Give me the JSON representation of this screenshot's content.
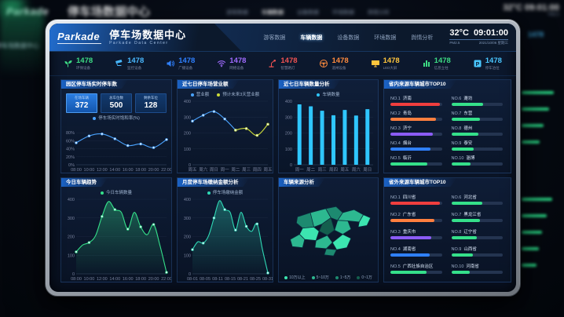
{
  "header": {
    "logo": "Parkade",
    "title": "停车场数据中心",
    "subtitle": "Parkade Data Center",
    "nav": [
      {
        "label": "游客数据",
        "active": false
      },
      {
        "label": "车辆数据",
        "active": true
      },
      {
        "label": "设备数据",
        "active": false
      },
      {
        "label": "环境数据",
        "active": false
      },
      {
        "label": "舆情分析",
        "active": false
      }
    ],
    "weather": {
      "temp": "32°C",
      "time": "09:01:00",
      "pm": "PM2.5",
      "date": "2021/10/06 星期三"
    }
  },
  "stats": [
    {
      "icon": "seedling-icon",
      "value": "1478",
      "label": "环保设备",
      "color": "#3ddc84"
    },
    {
      "icon": "cctv-icon",
      "value": "1478",
      "label": "监控设备",
      "color": "#49b8ff"
    },
    {
      "icon": "speaker-icon",
      "value": "1478",
      "label": "广播设备",
      "color": "#2f80ff"
    },
    {
      "icon": "wifi-icon",
      "value": "1478",
      "label": "网络设备",
      "color": "#a06bff"
    },
    {
      "icon": "lamp-icon",
      "value": "1478",
      "label": "智慧路灯",
      "color": "#f05252"
    },
    {
      "icon": "steering-icon",
      "value": "1478",
      "label": "道闸设备",
      "color": "#ff8a3d"
    },
    {
      "icon": "screen-icon",
      "value": "1478",
      "label": "LED大屏",
      "color": "#ffc53d"
    },
    {
      "icon": "pillar-icon",
      "value": "1478",
      "label": "信息立柱",
      "color": "#3ddc84"
    },
    {
      "icon": "parking-icon",
      "value": "1478",
      "label": "停车泊位",
      "color": "#49c6ff"
    }
  ],
  "panels": {
    "p1": {
      "title": "园区停车场实时停车数"
    },
    "p2": {
      "title": "近七日停车场营业额"
    },
    "p3": {
      "title": "近七日车辆数量分析"
    },
    "p4": {
      "title": "省内来源车辆城市TOP10"
    },
    "p5": {
      "title": "今日车辆趋势"
    },
    "p6": {
      "title": "月度停车场缴纳金额分析"
    },
    "p7": {
      "title": "车辆来源分析"
    },
    "p8": {
      "title": "省外来源车辆城市TOP10"
    }
  },
  "overview": {
    "boxes": [
      {
        "label": "在场车辆",
        "value": "372",
        "active": true
      },
      {
        "label": "总车位数",
        "value": "500",
        "active": false
      },
      {
        "label": "剩余车位",
        "value": "128",
        "active": false
      }
    ]
  },
  "chart_data": [
    {
      "id": "realtime-saturation",
      "type": "line",
      "title": "园区停车场实时停车数",
      "x": [
        "08:00",
        "10:00",
        "12:00",
        "14:00",
        "16:00",
        "18:00",
        "20:00",
        "22:00"
      ],
      "ylim": [
        0,
        100
      ],
      "yticks": [
        0,
        20,
        40,
        60,
        80
      ],
      "ysuffix": "%",
      "series": [
        {
          "name": "停车场实时饱和率(%)",
          "color": "#4aa3ff",
          "values": [
            55,
            72,
            77,
            65,
            48,
            52,
            43,
            63
          ]
        }
      ]
    },
    {
      "id": "weekly-revenue",
      "type": "line",
      "title": "近七日停车场营业额",
      "x": [
        "周五",
        "周六",
        "周日",
        "周一",
        "周二",
        "周三",
        "周四",
        "周五"
      ],
      "ylim": [
        0,
        400
      ],
      "yticks": [
        0,
        100,
        200,
        300,
        400
      ],
      "series": [
        {
          "name": "营业额",
          "color": "#4aa3ff",
          "values": [
            275,
            312,
            335,
            288,
            218,
            null,
            null,
            null
          ]
        },
        {
          "name": "预计未来3天营业额",
          "color": "#cddc39",
          "values": [
            null,
            null,
            null,
            null,
            218,
            228,
            185,
            255
          ]
        }
      ]
    },
    {
      "id": "weekly-vehicles",
      "type": "bar",
      "title": "近七日车辆数量分析",
      "x": [
        "周一",
        "周二",
        "周三",
        "周四",
        "周五",
        "周六",
        "周日"
      ],
      "ylim": [
        0,
        400
      ],
      "yticks": [
        0,
        100,
        200,
        300,
        400
      ],
      "series": [
        {
          "name": "车辆数量",
          "color": "#2fc6ff",
          "values": [
            380,
            368,
            340,
            312,
            345,
            310,
            350
          ]
        }
      ]
    },
    {
      "id": "today-trend",
      "type": "area",
      "title": "今日车辆趋势",
      "x": [
        "08:00",
        "10:00",
        "12:00",
        "14:00",
        "16:00",
        "18:00",
        "20:00",
        "22:00"
      ],
      "ylim": [
        0,
        400
      ],
      "yticks": [
        0,
        100,
        200,
        300,
        400
      ],
      "series": [
        {
          "name": "今日车辆数量",
          "color": "#35e08a",
          "values": [
            118,
            155,
            168,
            205,
            308,
            388,
            345,
            330,
            240,
            330,
            252,
            210,
            265,
            150,
            8
          ]
        }
      ]
    },
    {
      "id": "monthly-amount",
      "type": "area",
      "title": "月度停车场缴纳金额分析",
      "x": [
        "08-01",
        "08-05",
        "08-11",
        "08-15",
        "08-21",
        "08-25",
        "08-31"
      ],
      "ylim": [
        0,
        400
      ],
      "yticks": [
        0,
        100,
        200,
        300,
        400
      ],
      "series": [
        {
          "name": "停车场缴纳金额",
          "color": "#2fd9b5",
          "values": [
            130,
            172,
            165,
            205,
            300,
            392,
            345,
            330,
            235,
            330,
            255,
            228,
            268,
            130,
            5
          ]
        }
      ]
    }
  ],
  "rankings": {
    "inner": {
      "title": "省内来源车辆城市TOP10",
      "items": [
        {
          "rank": "NO.1",
          "name": "济南",
          "pct": 96,
          "color": "#f03e3e"
        },
        {
          "rank": "NO.2",
          "name": "青岛",
          "pct": 88,
          "color": "#ff7f3f"
        },
        {
          "rank": "NO.3",
          "name": "济宁",
          "pct": 82,
          "color": "#8b5cf6"
        },
        {
          "rank": "NO.4",
          "name": "烟台",
          "pct": 78,
          "color": "#2f80ff"
        },
        {
          "rank": "NO.5",
          "name": "临沂",
          "pct": 72,
          "color": "#35e08a"
        },
        {
          "rank": "NO.6",
          "name": "潍坊",
          "pct": 62,
          "color": "#35e08a"
        },
        {
          "rank": "NO.7",
          "name": "东营",
          "pct": 56,
          "color": "#35e08a"
        },
        {
          "rank": "NO.8",
          "name": "德州",
          "pct": 52,
          "color": "#35e08a"
        },
        {
          "rank": "NO.9",
          "name": "泰安",
          "pct": 44,
          "color": "#35e08a"
        },
        {
          "rank": "NO.10",
          "name": "淄博",
          "pct": 38,
          "color": "#35e08a"
        }
      ]
    },
    "outer": {
      "title": "省外来源车辆城市TOP10",
      "items": [
        {
          "rank": "NO.1",
          "name": "四川省",
          "pct": 96,
          "color": "#f03e3e"
        },
        {
          "rank": "NO.2",
          "name": "广东省",
          "pct": 86,
          "color": "#ff7f3f"
        },
        {
          "rank": "NO.3",
          "name": "重庆市",
          "pct": 80,
          "color": "#8b5cf6"
        },
        {
          "rank": "NO.4",
          "name": "湖南省",
          "pct": 76,
          "color": "#2f80ff"
        },
        {
          "rank": "NO.5",
          "name": "广西壮族自治区",
          "pct": 70,
          "color": "#35e08a"
        },
        {
          "rank": "NO.6",
          "name": "河北省",
          "pct": 60,
          "color": "#35e08a"
        },
        {
          "rank": "NO.7",
          "name": "黑龙江省",
          "pct": 56,
          "color": "#35e08a"
        },
        {
          "rank": "NO.8",
          "name": "辽宁省",
          "pct": 50,
          "color": "#35e08a"
        },
        {
          "rank": "NO.9",
          "name": "山西省",
          "pct": 42,
          "color": "#35e08a"
        },
        {
          "rank": "NO.10",
          "name": "河南省",
          "pct": 36,
          "color": "#35e08a"
        }
      ]
    }
  },
  "map": {
    "legend": [
      {
        "label": "10万以上",
        "color": "#3ce5b0"
      },
      {
        "label": "5~10万",
        "color": "#2db890"
      },
      {
        "label": "1~5万",
        "color": "#1d8a70"
      },
      {
        "label": "0~1万",
        "color": "#145f4e"
      }
    ]
  }
}
